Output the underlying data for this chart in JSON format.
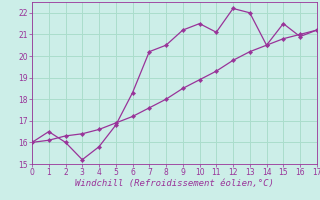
{
  "xlabel": "Windchill (Refroidissement éolien,°C)",
  "bg_color": "#cceee8",
  "line_color": "#993399",
  "grid_color": "#aaddcc",
  "x_data": [
    0,
    1,
    2,
    3,
    4,
    5,
    6,
    7,
    8,
    9,
    10,
    11,
    12,
    13,
    14,
    15,
    16,
    17
  ],
  "y_line1": [
    16.0,
    16.5,
    16.0,
    15.2,
    15.8,
    16.8,
    18.3,
    20.2,
    20.5,
    21.2,
    21.5,
    21.1,
    22.2,
    22.0,
    20.5,
    21.5,
    20.9,
    21.2
  ],
  "y_line2": [
    16.0,
    16.1,
    16.3,
    16.4,
    16.6,
    16.9,
    17.2,
    17.6,
    18.0,
    18.5,
    18.9,
    19.3,
    19.8,
    20.2,
    20.5,
    20.8,
    21.0,
    21.2
  ],
  "xlim": [
    0,
    17
  ],
  "ylim": [
    15.0,
    22.5
  ],
  "yticks": [
    15,
    16,
    17,
    18,
    19,
    20,
    21,
    22
  ],
  "xticks": [
    0,
    1,
    2,
    3,
    4,
    5,
    6,
    7,
    8,
    9,
    10,
    11,
    12,
    13,
    14,
    15,
    16,
    17
  ],
  "tick_labelsize": 5.5,
  "xlabel_fontsize": 6.5
}
